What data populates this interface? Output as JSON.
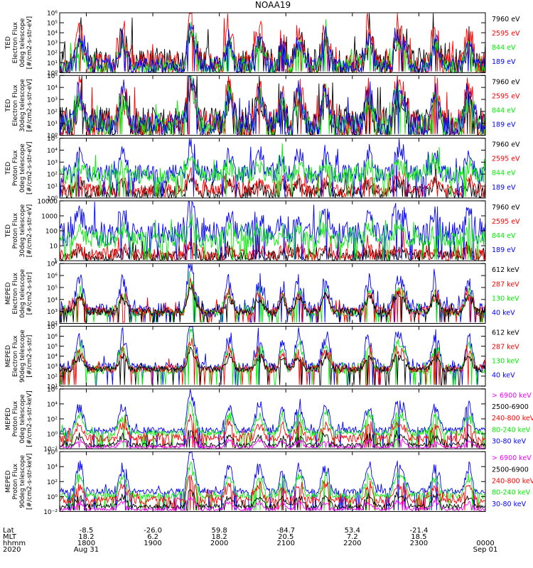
{
  "title": "NOAA19",
  "colors": {
    "black": "#000000",
    "red": "#ff0000",
    "green": "#00ee00",
    "blue": "#0000ff",
    "magenta": "#ff00ff"
  },
  "chart_data": [
    {
      "type": "line",
      "id": "ted-e-0",
      "ylabel": [
        "TED",
        "Electron Flux",
        "0deg telescope",
        "[#/cm2-s-str-eV]"
      ],
      "ylim": [
        1,
        1000000
      ],
      "yscale": "log",
      "ytick_labels": [
        "10⁰",
        "10¹",
        "10²",
        "10³",
        "10⁴",
        "10⁵",
        "10⁶"
      ],
      "legend": [
        {
          "label": "7960 eV",
          "color": "black"
        },
        {
          "label": "2595 eV",
          "color": "red"
        },
        {
          "label": "844 eV",
          "color": "green"
        },
        {
          "label": "189 eV",
          "color": "blue"
        }
      ],
      "series": [
        {
          "name": "7960 eV",
          "color": "black",
          "base": 1,
          "spread": 1.5,
          "peak": 2.2,
          "seed": 11
        },
        {
          "name": "2595 eV",
          "color": "red",
          "base": 0.8,
          "spread": 1.2,
          "peak": 3.5,
          "seed": 12
        },
        {
          "name": "844 eV",
          "color": "green",
          "base": 0.6,
          "spread": 0.8,
          "peak": 2.3,
          "seed": 13
        },
        {
          "name": "189 eV",
          "color": "blue",
          "base": 0.7,
          "spread": 0.8,
          "peak": 2.6,
          "seed": 14
        }
      ]
    },
    {
      "type": "line",
      "id": "ted-e-30",
      "ylabel": [
        "TED",
        "Electron Flux",
        "30deg telescope",
        "[#/cm2-s-str-eV]"
      ],
      "ylim": [
        1,
        100000
      ],
      "yscale": "log",
      "ytick_labels": [
        "10⁰",
        "10¹",
        "10²",
        "10³",
        "10⁴",
        "10⁵"
      ],
      "legend": [
        {
          "label": "7960 eV",
          "color": "black"
        },
        {
          "label": "2595 eV",
          "color": "red"
        },
        {
          "label": "844 eV",
          "color": "green"
        },
        {
          "label": "189 eV",
          "color": "blue"
        }
      ],
      "series": [
        {
          "name": "7960 eV",
          "color": "black",
          "base": 1,
          "spread": 1.4,
          "peak": 2.0,
          "seed": 21
        },
        {
          "name": "2595 eV",
          "color": "red",
          "base": 0.9,
          "spread": 1.3,
          "peak": 3.0,
          "seed": 22
        },
        {
          "name": "844 eV",
          "color": "green",
          "base": 0.8,
          "spread": 0.9,
          "peak": 2.4,
          "seed": 23
        },
        {
          "name": "189 eV",
          "color": "blue",
          "base": 0.9,
          "spread": 0.9,
          "peak": 2.8,
          "seed": 24
        }
      ]
    },
    {
      "type": "line",
      "id": "ted-p-0",
      "ylabel": [
        "TED",
        "Proton Flux",
        "0deg telescope",
        "[#/cm2-s-str-eV]"
      ],
      "ylim": [
        1,
        100000
      ],
      "yscale": "log",
      "ytick_labels": [
        "10⁰",
        "10¹",
        "10²",
        "10³",
        "10⁴",
        "10⁵"
      ],
      "legend": [
        {
          "label": "7960 eV",
          "color": "black"
        },
        {
          "label": "2595 eV",
          "color": "red"
        },
        {
          "label": "844 eV",
          "color": "green"
        },
        {
          "label": "189 eV",
          "color": "blue"
        }
      ],
      "series": [
        {
          "name": "7960 eV",
          "color": "black",
          "base": 0.5,
          "spread": 0.6,
          "peak": 0.6,
          "seed": 31
        },
        {
          "name": "2595 eV",
          "color": "red",
          "base": 0.7,
          "spread": 0.5,
          "peak": 0.8,
          "seed": 32
        },
        {
          "name": "189 eV",
          "color": "blue",
          "base": 2.0,
          "spread": 0.8,
          "peak": 1.6,
          "seed": 34
        },
        {
          "name": "844 eV",
          "color": "green",
          "base": 1.9,
          "spread": 0.7,
          "peak": 0.8,
          "seed": 33
        }
      ]
    },
    {
      "type": "line",
      "id": "ted-p-30",
      "ylabel": [
        "TED",
        "Proton Flux",
        "30deg telescope",
        "[#/cm2-s-str-eV]"
      ],
      "ylim": [
        1,
        10000
      ],
      "yscale": "log",
      "ytick_labels": [
        "1",
        "10",
        "100",
        "1000",
        "10000"
      ],
      "legend": [
        {
          "label": "7960 eV",
          "color": "black"
        },
        {
          "label": "2595 eV",
          "color": "red"
        },
        {
          "label": "844 eV",
          "color": "green"
        },
        {
          "label": "189 eV",
          "color": "blue"
        }
      ],
      "series": [
        {
          "name": "7960 eV",
          "color": "black",
          "base": 0.3,
          "spread": 0.4,
          "peak": 0.3,
          "seed": 41
        },
        {
          "name": "2595 eV",
          "color": "red",
          "base": 0.4,
          "spread": 0.4,
          "peak": 0.4,
          "seed": 42
        },
        {
          "name": "189 eV",
          "color": "blue",
          "base": 1.8,
          "spread": 0.8,
          "peak": 1.4,
          "seed": 44
        },
        {
          "name": "844 eV",
          "color": "green",
          "base": 1.4,
          "spread": 0.6,
          "peak": 0.7,
          "seed": 43
        }
      ]
    },
    {
      "type": "line",
      "id": "meped-e-0",
      "ylabel": [
        "MEPED",
        "Electron Flux",
        "0deg telescope",
        "[#/cm2-s-str]"
      ],
      "ylim": [
        100,
        10000000
      ],
      "yscale": "log",
      "ytick_labels": [
        "10²",
        "10³",
        "10⁴",
        "10⁵",
        "10⁶",
        "10⁷"
      ],
      "legend": [
        {
          "label": "612 keV",
          "color": "black"
        },
        {
          "label": "287 keV",
          "color": "red"
        },
        {
          "label": "130 keV",
          "color": "green"
        },
        {
          "label": "40 keV",
          "color": "blue"
        }
      ],
      "series": [
        {
          "name": "40 keV",
          "color": "blue",
          "base": 3.1,
          "spread": 0.6,
          "peak": 2.4,
          "seed": 51
        },
        {
          "name": "130 keV",
          "color": "green",
          "base": 2.9,
          "spread": 0.3,
          "peak": 1.7,
          "seed": 52
        },
        {
          "name": "287 keV",
          "color": "red",
          "base": 3.0,
          "spread": 0.4,
          "peak": 1.5,
          "seed": 53
        },
        {
          "name": "612 keV",
          "color": "black",
          "base": 3.0,
          "spread": 0.3,
          "peak": 1.2,
          "seed": 54
        }
      ]
    },
    {
      "type": "line",
      "id": "meped-e-90",
      "ylabel": [
        "MEPED",
        "Electron Flux",
        "90deg telescope",
        "[#/cm2-s-str]"
      ],
      "ylim": [
        10,
        10000000
      ],
      "yscale": "log",
      "ytick_labels": [
        "10¹",
        "10²",
        "10³",
        "10⁴",
        "10⁵",
        "10⁶",
        "10⁷"
      ],
      "legend": [
        {
          "label": "612 keV",
          "color": "black"
        },
        {
          "label": "287 keV",
          "color": "red"
        },
        {
          "label": "130 keV",
          "color": "green"
        },
        {
          "label": "40 keV",
          "color": "blue"
        }
      ],
      "series": [
        {
          "name": "40 keV",
          "color": "blue",
          "base": 2.9,
          "spread": 0.5,
          "peak": 3.0,
          "seed": 61
        },
        {
          "name": "130 keV",
          "color": "green",
          "base": 2.6,
          "spread": 0.4,
          "peak": 2.4,
          "seed": 62
        },
        {
          "name": "287 keV",
          "color": "red",
          "base": 2.7,
          "spread": 0.4,
          "peak": 1.8,
          "seed": 63
        },
        {
          "name": "612 keV",
          "color": "black",
          "base": 2.7,
          "spread": 0.3,
          "peak": 1.2,
          "seed": 64
        }
      ]
    },
    {
      "type": "line",
      "id": "meped-p-0",
      "ylabel": [
        "MEPED",
        "Proton Flux",
        "0deg telescope",
        "[#/cm2-s-str-keV]"
      ],
      "ylim": [
        0.01,
        1000000
      ],
      "yscale": "log",
      "ytick_labels": [
        "10⁻²",
        "10⁰",
        "10²",
        "10⁴",
        "10⁶"
      ],
      "legend": [
        {
          "label": "> 6900 keV",
          "color": "magenta"
        },
        {
          "label": "2500-6900",
          "color": "black"
        },
        {
          "label": "240-800 keV",
          "color": "red"
        },
        {
          "label": "80-240 keV",
          "color": "green"
        },
        {
          "label": "30-80 keV",
          "color": "blue"
        }
      ],
      "series": [
        {
          "name": "30-80 keV",
          "color": "blue",
          "base": 0.5,
          "spread": 0.4,
          "peak": 3.2,
          "seed": 71
        },
        {
          "name": "80-240 keV",
          "color": "green",
          "base": 0.1,
          "spread": 0.4,
          "peak": 2.4,
          "seed": 72
        },
        {
          "name": "240-800 keV",
          "color": "red",
          "base": -0.6,
          "spread": 0.5,
          "peak": 1.8,
          "seed": 73
        },
        {
          "name": "2500-6900",
          "color": "black",
          "base": -1.5,
          "spread": 0.3,
          "peak": 1.2,
          "seed": 74
        },
        {
          "name": "> 6900 keV",
          "color": "magenta",
          "base": -1.8,
          "spread": 0.2,
          "peak": 0.9,
          "seed": 75
        }
      ]
    },
    {
      "type": "line",
      "id": "meped-p-90",
      "ylabel": [
        "MEPED",
        "Proton Flux",
        "90deg telescope",
        "[#/cm2-s-str-keV]"
      ],
      "ylim": [
        0.01,
        1000000
      ],
      "yscale": "log",
      "ytick_labels": [
        "10⁻²",
        "10⁰",
        "10²",
        "10⁴",
        "10⁶"
      ],
      "legend": [
        {
          "label": "> 6900 keV",
          "color": "magenta"
        },
        {
          "label": "2500-6900",
          "color": "black"
        },
        {
          "label": "240-800 keV",
          "color": "red"
        },
        {
          "label": "80-240 keV",
          "color": "green"
        },
        {
          "label": "30-80 keV",
          "color": "blue"
        }
      ],
      "series": [
        {
          "name": "30-80 keV",
          "color": "blue",
          "base": 0.7,
          "spread": 0.4,
          "peak": 3.3,
          "seed": 81
        },
        {
          "name": "80-240 keV",
          "color": "green",
          "base": 0.1,
          "spread": 0.4,
          "peak": 2.6,
          "seed": 82
        },
        {
          "name": "240-800 keV",
          "color": "red",
          "base": -0.5,
          "spread": 0.5,
          "peak": 1.9,
          "seed": 83
        },
        {
          "name": "2500-6900",
          "color": "black",
          "base": -1.3,
          "spread": 0.3,
          "peak": 1.3,
          "seed": 84
        },
        {
          "name": "> 6900 keV",
          "color": "magenta",
          "base": -1.7,
          "spread": 0.2,
          "peak": 0.9,
          "seed": 85
        }
      ]
    }
  ],
  "x_axis": {
    "range_hours": [
      17.6,
      24.0
    ],
    "row_labels": [
      "Lat",
      "MLT",
      "hhmm",
      "2020"
    ],
    "ticks": [
      {
        "hour": 18,
        "lat": "-8.5",
        "mlt": "18.2",
        "hhmm": "1800",
        "date": "Aug 31"
      },
      {
        "hour": 19,
        "lat": "-26.0",
        "mlt": "6.2",
        "hhmm": "1900",
        "date": ""
      },
      {
        "hour": 20,
        "lat": "59.8",
        "mlt": "18.2",
        "hhmm": "2000",
        "date": ""
      },
      {
        "hour": 21,
        "lat": "-84.7",
        "mlt": "20.5",
        "hhmm": "2100",
        "date": ""
      },
      {
        "hour": 22,
        "lat": "53.4",
        "mlt": "7.2",
        "hhmm": "2200",
        "date": ""
      },
      {
        "hour": 23,
        "lat": "-21.4",
        "mlt": "18.5",
        "hhmm": "2300",
        "date": ""
      },
      {
        "hour": 24,
        "lat": "",
        "mlt": "",
        "hhmm": "0000",
        "date": "Sep 01"
      }
    ]
  },
  "passes_hours": [
    17.9,
    18.55,
    19.6,
    20.15,
    20.6,
    21.2,
    21.6,
    22.25,
    22.75,
    23.25,
    23.75
  ],
  "orbit_events_hours": [
    19.55,
    20.95,
    22.65
  ]
}
